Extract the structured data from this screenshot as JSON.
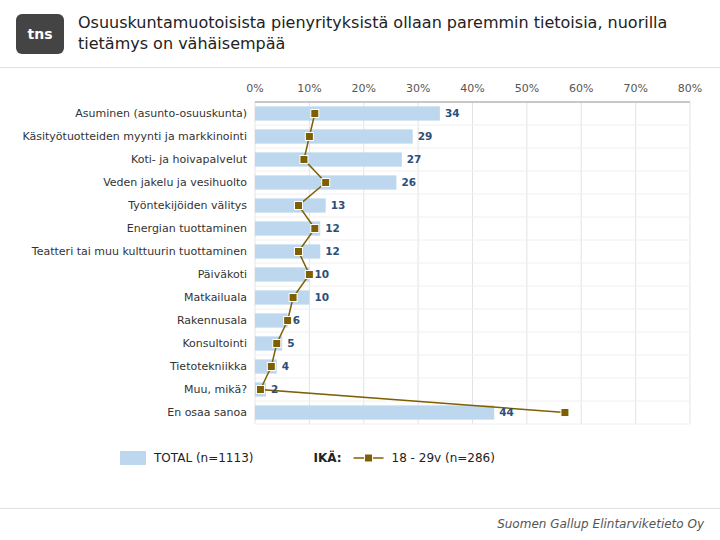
{
  "chart_data": {
    "type": "bar",
    "orientation": "horizontal",
    "title": "Osuuskuntamuotoisista pienyrityksistä ollaan paremmin tietoisia, nuorilla tietämys on vähäisempää",
    "annotations": [
      "tns",
      "Suomen Gallup Elintarviketieto Oy"
    ],
    "categories": [
      "Asuminen (asunto-osuuskunta)",
      "Käsityötuotteiden myynti ja markkinointi",
      "Koti- ja hoivapalvelut",
      "Veden jakelu ja vesihuolto",
      "Työntekijöiden välitys",
      "Energian tuottaminen",
      "Teatteri tai muu kulttuurin tuottaminen",
      "Päiväkoti",
      "Matkailuala",
      "Rakennusala",
      "Konsultointi",
      "Tietotekniikka",
      "Muu, mikä?",
      "En osaa sanoa"
    ],
    "series": [
      {
        "name": "TOTAL (n=1113)",
        "type": "bar",
        "color": "#bdd7ee",
        "data_labels": true,
        "values": [
          34,
          29,
          27,
          26,
          13,
          12,
          12,
          10,
          10,
          6,
          5,
          4,
          2,
          44
        ]
      },
      {
        "name": "18 - 29v (n=286)",
        "type": "line",
        "color": "#7f6000",
        "marker": "square",
        "values": [
          11,
          10,
          9,
          13,
          8,
          11,
          8,
          10,
          7,
          6,
          4,
          3,
          1,
          57
        ]
      }
    ],
    "legend_title": "IKÄ:",
    "legend": "bottom",
    "xlim": [
      0,
      80
    ],
    "xticks": [
      {
        "value": 0,
        "label": "0%"
      },
      {
        "value": 10,
        "label": "10%"
      },
      {
        "value": 20,
        "label": "20%"
      },
      {
        "value": 30,
        "label": "30%"
      },
      {
        "value": 40,
        "label": "40%"
      },
      {
        "value": 50,
        "label": "50%"
      },
      {
        "value": 60,
        "label": "60%"
      },
      {
        "value": 70,
        "label": "70%"
      },
      {
        "value": 80,
        "label": "80%"
      }
    ],
    "grid": true
  }
}
